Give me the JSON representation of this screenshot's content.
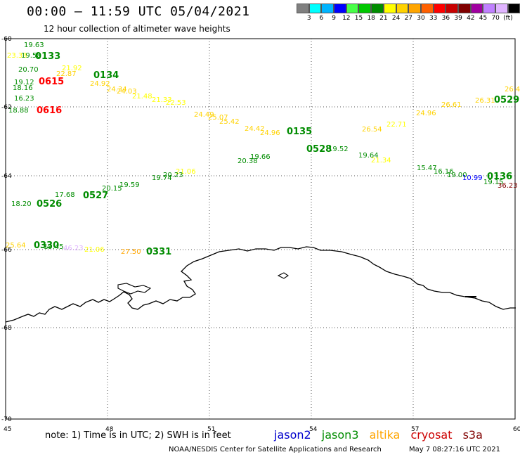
{
  "header": {
    "title": "00:00 – 11:59 UTC 05/04/2021",
    "subtitle": "12 hour collection of altimeter wave heights"
  },
  "scale": {
    "colors": [
      "#808080",
      "#00ffff",
      "#00b4ff",
      "#0000ff",
      "#48ff48",
      "#00c800",
      "#008c00",
      "#ffff00",
      "#ffd200",
      "#ffa500",
      "#ff6000",
      "#ff0000",
      "#c80000",
      "#800000",
      "#a000a0",
      "#c080ff",
      "#e0b4ff",
      "#000000"
    ],
    "labels": [
      "3",
      "6",
      "9",
      "12",
      "15",
      "18",
      "21",
      "24",
      "27",
      "30",
      "33",
      "36",
      "39",
      "42",
      "45",
      "70",
      "(ft)"
    ]
  },
  "axes": {
    "lon_ticks": [
      "45",
      "48",
      "51",
      "54",
      "57",
      "60"
    ],
    "lat_ticks": [
      "-60",
      "-62",
      "-64",
      "-66",
      "-68",
      "-70"
    ]
  },
  "passes": [
    {
      "label": "0133",
      "color": "#008c00"
    },
    {
      "label": "0134",
      "color": "#008c00"
    },
    {
      "label": "0135",
      "color": "#008c00"
    },
    {
      "label": "0136",
      "color": "#008c00"
    },
    {
      "label": "0528",
      "color": "#008c00"
    },
    {
      "label": "0529",
      "color": "#008c00"
    },
    {
      "label": "0526",
      "color": "#008c00"
    },
    {
      "label": "0527",
      "color": "#008c00"
    },
    {
      "label": "0330",
      "color": "#008c00"
    },
    {
      "label": "0331",
      "color": "#008c00"
    },
    {
      "label": "0615",
      "color": "#ff0000"
    },
    {
      "label": "0616",
      "color": "#ff0000"
    }
  ],
  "wave_heights": [
    {
      "v": "19.63",
      "c": "#008c00"
    },
    {
      "v": "23.33",
      "c": "#ffff00"
    },
    {
      "v": "19.58",
      "c": "#008c00"
    },
    {
      "v": "20.70",
      "c": "#008c00"
    },
    {
      "v": "21.92",
      "c": "#ffff00"
    },
    {
      "v": "22.87",
      "c": "#ffd200"
    },
    {
      "v": "19.12",
      "c": "#008c00"
    },
    {
      "v": "18.16",
      "c": "#008c00"
    },
    {
      "v": "24.92",
      "c": "#ffd200"
    },
    {
      "v": "24.34",
      "c": "#ffd200"
    },
    {
      "v": "24.03",
      "c": "#ffd200"
    },
    {
      "v": "21.48",
      "c": "#ffff00"
    },
    {
      "v": "21.33",
      "c": "#ffff00"
    },
    {
      "v": "22.53",
      "c": "#ffff00"
    },
    {
      "v": "24.49",
      "c": "#ffd200"
    },
    {
      "v": "25.07",
      "c": "#ffd200"
    },
    {
      "v": "25.42",
      "c": "#ffd200"
    },
    {
      "v": "24.42",
      "c": "#ffd200"
    },
    {
      "v": "24.96",
      "c": "#ffd200"
    },
    {
      "v": "26.54",
      "c": "#ffd200"
    },
    {
      "v": "22.71",
      "c": "#ffff00"
    },
    {
      "v": "24.96",
      "c": "#ffd200"
    },
    {
      "v": "26.61",
      "c": "#ffd200"
    },
    {
      "v": "26.31",
      "c": "#ffd200"
    },
    {
      "v": "26.4",
      "c": "#ffd200"
    },
    {
      "v": "19.52",
      "c": "#008c00"
    },
    {
      "v": "19.64",
      "c": "#008c00"
    },
    {
      "v": "21.34",
      "c": "#ffff00"
    },
    {
      "v": "15.47",
      "c": "#008c00"
    },
    {
      "v": "16.16",
      "c": "#008c00"
    },
    {
      "v": "19.00",
      "c": "#008c00"
    },
    {
      "v": "10.99",
      "c": "#0000ff"
    },
    {
      "v": "19.15",
      "c": "#008c00"
    },
    {
      "v": "36.23",
      "c": "#800000"
    },
    {
      "v": "20.38",
      "c": "#008c00"
    },
    {
      "v": "19.66",
      "c": "#008c00"
    },
    {
      "v": "21.06",
      "c": "#ffff00"
    },
    {
      "v": "20.23",
      "c": "#008c00"
    },
    {
      "v": "19.74",
      "c": "#008c00"
    },
    {
      "v": "19.59",
      "c": "#008c00"
    },
    {
      "v": "20.15",
      "c": "#008c00"
    },
    {
      "v": "18.20",
      "c": "#008c00"
    },
    {
      "v": "17.68",
      "c": "#008c00"
    },
    {
      "v": "25.64",
      "c": "#ffd200"
    },
    {
      "v": "19.45",
      "c": "#008c00"
    },
    {
      "v": "46.23",
      "c": "#e0b4ff"
    },
    {
      "v": "21.06",
      "c": "#ffff00"
    },
    {
      "v": "27.50",
      "c": "#ffa500"
    },
    {
      "v": "18.88",
      "c": "#008c00"
    },
    {
      "v": "16.23",
      "c": "#008c00"
    }
  ],
  "footer": {
    "note": "note:  1) Time is in UTC;  2) SWH is in feet",
    "legend": [
      {
        "label": "jason2",
        "color": "#0000cc"
      },
      {
        "label": "jason3",
        "color": "#008c00"
      },
      {
        "label": "altika",
        "color": "#ffa500"
      },
      {
        "label": "cryosat",
        "color": "#cc0000"
      },
      {
        "label": "s3a",
        "color": "#800000"
      }
    ],
    "credit": "NOAA/NESDIS Center for Satellite Applications and Research",
    "timestamp": "May  7 08:27:16 UTC 2021"
  }
}
